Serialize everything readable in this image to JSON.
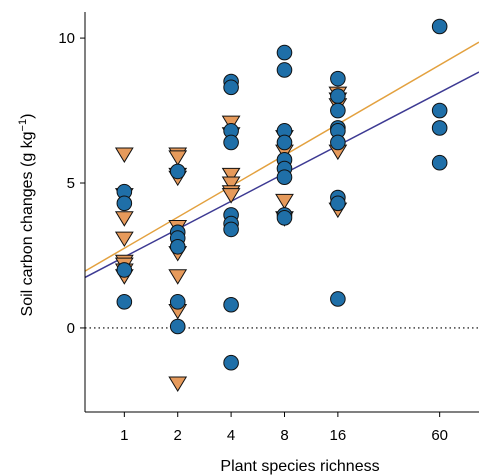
{
  "chart_data": {
    "type": "scatter",
    "title": "",
    "xlabel": "Plant species richness",
    "ylabel_main": "Soil carbon changes (g kg",
    "ylabel_sup": "−1",
    "ylabel_close": ")",
    "x_scale": "log2",
    "x_ticks": [
      1,
      2,
      4,
      8,
      16,
      60
    ],
    "x_tick_labels": [
      "1",
      "2",
      "4",
      "8",
      "16",
      "60"
    ],
    "x_range": [
      0.6,
      100
    ],
    "y_ticks": [
      0,
      5,
      10
    ],
    "y_tick_labels": [
      "0",
      "5",
      "10"
    ],
    "y_range": [
      -2.9,
      10.9
    ],
    "reference_line": {
      "y": 0,
      "style": "dotted"
    },
    "colors": {
      "circle_fill": "#1f6fa8",
      "triangle_fill": "#e69a5b",
      "marker_stroke": "#111111",
      "circle_fit": "#3d3a93",
      "triangle_fit": "#e3a13f"
    },
    "series": [
      {
        "marker": "circle",
        "points": [
          [
            1,
            4.7
          ],
          [
            1,
            4.3
          ],
          [
            1,
            2.0
          ],
          [
            1,
            0.9
          ],
          [
            2,
            5.4
          ],
          [
            2,
            3.3
          ],
          [
            2,
            3.1
          ],
          [
            2,
            2.8
          ],
          [
            2,
            0.9
          ],
          [
            2,
            0.05
          ],
          [
            4,
            8.5
          ],
          [
            4,
            8.3
          ],
          [
            4,
            6.8
          ],
          [
            4,
            6.4
          ],
          [
            4,
            3.9
          ],
          [
            4,
            3.6
          ],
          [
            4,
            3.4
          ],
          [
            4,
            0.8
          ],
          [
            4,
            -1.2
          ],
          [
            8,
            9.5
          ],
          [
            8,
            8.9
          ],
          [
            8,
            6.8
          ],
          [
            8,
            6.4
          ],
          [
            8,
            5.8
          ],
          [
            8,
            5.5
          ],
          [
            8,
            5.2
          ],
          [
            8,
            3.9
          ],
          [
            8,
            3.8
          ],
          [
            16,
            8.6
          ],
          [
            16,
            8.0
          ],
          [
            16,
            7.5
          ],
          [
            16,
            6.9
          ],
          [
            16,
            6.8
          ],
          [
            16,
            6.4
          ],
          [
            16,
            4.5
          ],
          [
            16,
            4.3
          ],
          [
            16,
            1.0
          ],
          [
            60,
            10.4
          ],
          [
            60,
            7.5
          ],
          [
            60,
            6.9
          ],
          [
            60,
            5.7
          ]
        ],
        "fit": {
          "intercept": 2.45,
          "slope_per_doubling": 0.96
        }
      },
      {
        "marker": "triangle-down",
        "points": [
          [
            1,
            6.0
          ],
          [
            1,
            4.6
          ],
          [
            1,
            3.8
          ],
          [
            1,
            3.1
          ],
          [
            1,
            2.3
          ],
          [
            1,
            2.2
          ],
          [
            1,
            2.0
          ],
          [
            1,
            1.8
          ],
          [
            2,
            6.0
          ],
          [
            2,
            5.9
          ],
          [
            2,
            5.3
          ],
          [
            2,
            5.2
          ],
          [
            2,
            3.5
          ],
          [
            2,
            2.6
          ],
          [
            2,
            1.8
          ],
          [
            2,
            0.6
          ],
          [
            2,
            -1.9
          ],
          [
            4,
            7.1
          ],
          [
            4,
            6.7
          ],
          [
            4,
            5.3
          ],
          [
            4,
            5.0
          ],
          [
            4,
            4.7
          ],
          [
            4,
            4.6
          ],
          [
            8,
            6.6
          ],
          [
            8,
            6.1
          ],
          [
            8,
            4.4
          ],
          [
            8,
            3.8
          ],
          [
            16,
            8.1
          ],
          [
            16,
            7.9
          ],
          [
            16,
            7.7
          ],
          [
            16,
            6.1
          ],
          [
            16,
            4.1
          ]
        ],
        "fit": {
          "intercept": 2.75,
          "slope_per_doubling": 1.07
        }
      }
    ]
  }
}
